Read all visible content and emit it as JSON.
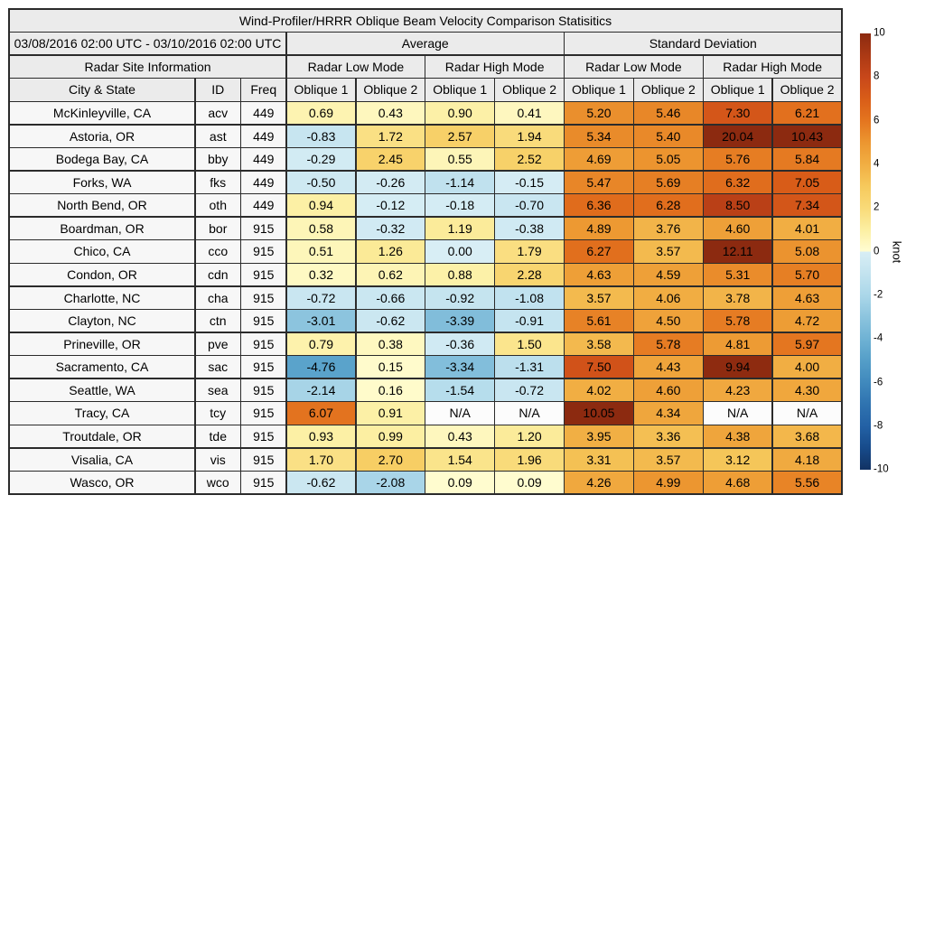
{
  "figure": {
    "background": "#ffffff",
    "grid_line_color": "#2b2b2b",
    "header_bg": "#ebebeb",
    "row_label_bg": "#f7f7f7",
    "text_color": "#000000"
  },
  "chart_data": {
    "type": "heatmap",
    "title": "Wind-Profiler/HRRR Oblique Beam Velocity Comparison Statisitics",
    "period": "03/08/2016 02:00 UTC - 03/10/2016 02:00 UTC",
    "site_info_header": "Radar Site Information",
    "group_headers": [
      "Average",
      "Standard Deviation"
    ],
    "mode_headers": [
      "Radar Low Mode",
      "Radar High Mode",
      "Radar Low Mode",
      "Radar High Mode"
    ],
    "column_headers": [
      "City & State",
      "ID",
      "Freq",
      "Oblique 1",
      "Oblique 2",
      "Oblique 1",
      "Oblique 2",
      "Oblique 1",
      "Oblique 2",
      "Oblique 1",
      "Oblique 2"
    ],
    "rows": [
      {
        "city": "McKinleyville, CA",
        "id": "acv",
        "freq": "449",
        "values": [
          "0.69",
          "0.43",
          "0.90",
          "0.41",
          "5.20",
          "5.46",
          "7.30",
          "6.21"
        ]
      },
      {
        "city": "Astoria, OR",
        "id": "ast",
        "freq": "449",
        "values": [
          "-0.83",
          "1.72",
          "2.57",
          "1.94",
          "5.34",
          "5.40",
          "20.04",
          "10.43"
        ]
      },
      {
        "city": "Bodega Bay, CA",
        "id": "bby",
        "freq": "449",
        "values": [
          "-0.29",
          "2.45",
          "0.55",
          "2.52",
          "4.69",
          "5.05",
          "5.76",
          "5.84"
        ]
      },
      {
        "city": "Forks, WA",
        "id": "fks",
        "freq": "449",
        "values": [
          "-0.50",
          "-0.26",
          "-1.14",
          "-0.15",
          "5.47",
          "5.69",
          "6.32",
          "7.05"
        ]
      },
      {
        "city": "North Bend, OR",
        "id": "oth",
        "freq": "449",
        "values": [
          "0.94",
          "-0.12",
          "-0.18",
          "-0.70",
          "6.36",
          "6.28",
          "8.50",
          "7.34"
        ]
      },
      {
        "city": "Boardman, OR",
        "id": "bor",
        "freq": "915",
        "values": [
          "0.58",
          "-0.32",
          "1.19",
          "-0.38",
          "4.89",
          "3.76",
          "4.60",
          "4.01"
        ]
      },
      {
        "city": "Chico, CA",
        "id": "cco",
        "freq": "915",
        "values": [
          "0.51",
          "1.26",
          "0.00",
          "1.79",
          "6.27",
          "3.57",
          "12.11",
          "5.08"
        ]
      },
      {
        "city": "Condon, OR",
        "id": "cdn",
        "freq": "915",
        "values": [
          "0.32",
          "0.62",
          "0.88",
          "2.28",
          "4.63",
          "4.59",
          "5.31",
          "5.70"
        ]
      },
      {
        "city": "Charlotte, NC",
        "id": "cha",
        "freq": "915",
        "values": [
          "-0.72",
          "-0.66",
          "-0.92",
          "-1.08",
          "3.57",
          "4.06",
          "3.78",
          "4.63"
        ]
      },
      {
        "city": "Clayton, NC",
        "id": "ctn",
        "freq": "915",
        "values": [
          "-3.01",
          "-0.62",
          "-3.39",
          "-0.91",
          "5.61",
          "4.50",
          "5.78",
          "4.72"
        ]
      },
      {
        "city": "Prineville, OR",
        "id": "pve",
        "freq": "915",
        "values": [
          "0.79",
          "0.38",
          "-0.36",
          "1.50",
          "3.58",
          "5.78",
          "4.81",
          "5.97"
        ]
      },
      {
        "city": "Sacramento, CA",
        "id": "sac",
        "freq": "915",
        "values": [
          "-4.76",
          "0.15",
          "-3.34",
          "-1.31",
          "7.50",
          "4.43",
          "9.94",
          "4.00"
        ]
      },
      {
        "city": "Seattle, WA",
        "id": "sea",
        "freq": "915",
        "values": [
          "-2.14",
          "0.16",
          "-1.54",
          "-0.72",
          "4.02",
          "4.60",
          "4.23",
          "4.30"
        ]
      },
      {
        "city": "Tracy, CA",
        "id": "tcy",
        "freq": "915",
        "values": [
          "6.07",
          "0.91",
          "N/A",
          "N/A",
          "10.05",
          "4.34",
          "N/A",
          "N/A"
        ]
      },
      {
        "city": "Troutdale, OR",
        "id": "tde",
        "freq": "915",
        "values": [
          "0.93",
          "0.99",
          "0.43",
          "1.20",
          "3.95",
          "3.36",
          "4.38",
          "3.68"
        ]
      },
      {
        "city": "Visalia, CA",
        "id": "vis",
        "freq": "915",
        "values": [
          "1.70",
          "2.70",
          "1.54",
          "1.96",
          "3.31",
          "3.57",
          "3.12",
          "4.18"
        ]
      },
      {
        "city": "Wasco, OR",
        "id": "wco",
        "freq": "915",
        "values": [
          "-0.62",
          "-2.08",
          "0.09",
          "0.09",
          "4.26",
          "4.99",
          "4.68",
          "5.56"
        ]
      }
    ],
    "colorbar": {
      "label": "knot",
      "ticks": [
        "10",
        "8",
        "6",
        "4",
        "2",
        "0",
        "-2",
        "-4",
        "-6",
        "-8",
        "-10"
      ],
      "vmin": -10,
      "vmax": 10,
      "positive_ramp": [
        "#fffdd3",
        "#fcefa2",
        "#f9da78",
        "#f6c95c",
        "#f1ae43",
        "#ec9630",
        "#e4751f",
        "#d95d18",
        "#c8471a",
        "#ab3914",
        "#8c2a10"
      ],
      "negative_ramp": [
        "#d8eef5",
        "#c3e3ef",
        "#abd7e9",
        "#8cc4de",
        "#6fb2d4",
        "#549ec8",
        "#4089bd",
        "#2f73b0",
        "#2361a5",
        "#174b8b",
        "#123263"
      ],
      "na_color": "#fcfcfc"
    }
  }
}
